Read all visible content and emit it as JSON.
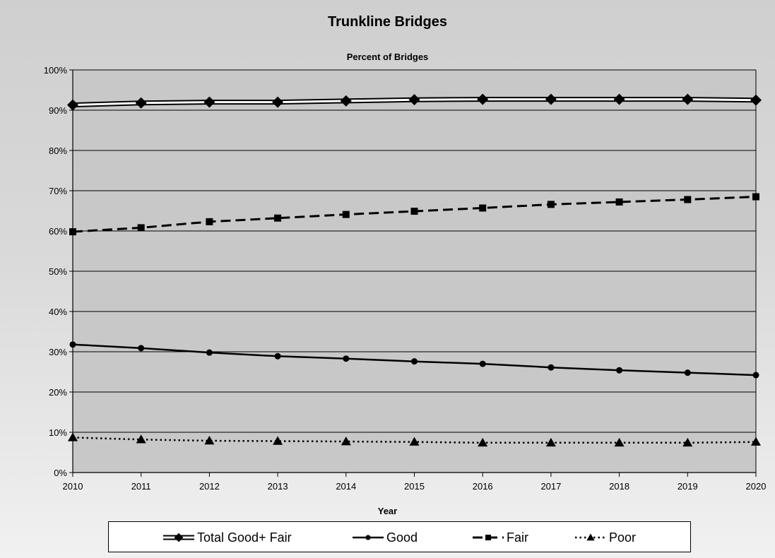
{
  "chart_data": {
    "type": "line",
    "title": "Trunkline Bridges",
    "subtitle": "Percent of Bridges",
    "xlabel": "Year",
    "ylabel": "",
    "x": [
      2010,
      2011,
      2012,
      2013,
      2014,
      2015,
      2016,
      2017,
      2018,
      2019,
      2020
    ],
    "ylim": [
      0,
      100
    ],
    "yticks": [
      "0%",
      "10%",
      "20%",
      "30%",
      "40%",
      "50%",
      "60%",
      "70%",
      "80%",
      "90%",
      "100%"
    ],
    "grid": true,
    "legend_position": "bottom",
    "series": [
      {
        "name": "Total Good+ Fair",
        "values": [
          91.3,
          91.8,
          92.0,
          92.0,
          92.3,
          92.6,
          92.7,
          92.7,
          92.7,
          92.7,
          92.5
        ],
        "line": "double",
        "marker": "diamond"
      },
      {
        "name": "Good",
        "values": [
          31.8,
          30.9,
          29.8,
          28.9,
          28.3,
          27.6,
          27.0,
          26.1,
          25.4,
          24.8,
          24.2
        ],
        "line": "solid",
        "marker": "circle"
      },
      {
        "name": "Fair",
        "values": [
          59.8,
          60.8,
          62.3,
          63.2,
          64.1,
          64.9,
          65.7,
          66.6,
          67.2,
          67.8,
          68.5
        ],
        "line": "dashed",
        "marker": "square"
      },
      {
        "name": "Poor",
        "values": [
          8.7,
          8.2,
          7.9,
          7.8,
          7.7,
          7.6,
          7.4,
          7.4,
          7.4,
          7.4,
          7.6
        ],
        "line": "dotted",
        "marker": "triangle"
      }
    ]
  },
  "colors": {
    "plot_background": "#c8c8c8",
    "series": "#000000",
    "outer_background": "#d9d9d9"
  }
}
